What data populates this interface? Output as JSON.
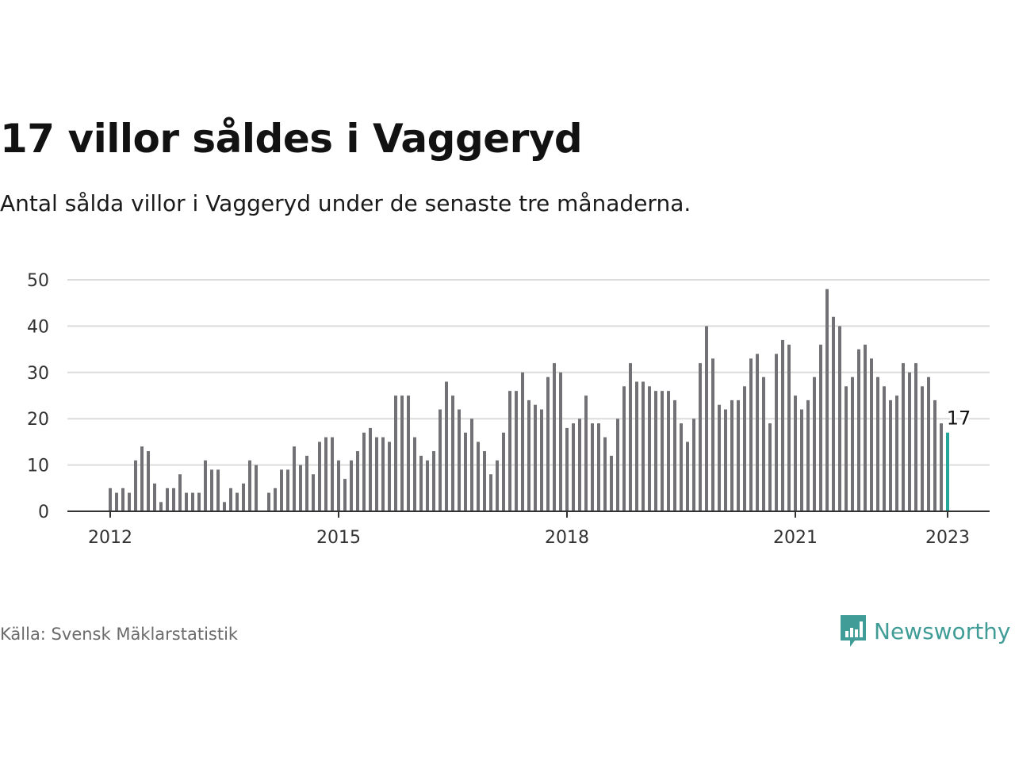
{
  "header": {
    "title": "17 villor såldes i Vaggeryd",
    "subtitle": "Antal sålda villor i Vaggeryd under de senaste tre månaderna."
  },
  "footer": {
    "source": "Källa: Svensk Mäklarstatistik",
    "brand": "Newsworthy",
    "brand_color": "#3f9c96"
  },
  "colors": {
    "bar": "#727276",
    "highlight": "#26a69a",
    "grid": "#dcdcdc",
    "axis": "#333333"
  },
  "chart_data": {
    "type": "bar",
    "x_start": "2012-01",
    "y_ticks": [
      0,
      10,
      20,
      30,
      40,
      50
    ],
    "ylim": [
      0,
      50
    ],
    "x_ticks": [
      "2012",
      "2015",
      "2018",
      "2021",
      "2023"
    ],
    "grid": true,
    "highlight_last": true,
    "last_label": "17",
    "values": [
      5,
      4,
      5,
      4,
      11,
      14,
      13,
      6,
      2,
      5,
      5,
      8,
      4,
      4,
      4,
      11,
      9,
      9,
      2,
      5,
      4,
      6,
      11,
      10,
      0,
      4,
      5,
      9,
      9,
      14,
      10,
      12,
      8,
      15,
      16,
      16,
      11,
      7,
      11,
      13,
      17,
      18,
      16,
      16,
      15,
      25,
      25,
      25,
      16,
      12,
      11,
      13,
      22,
      28,
      25,
      22,
      17,
      20,
      15,
      13,
      8,
      11,
      17,
      26,
      26,
      30,
      24,
      23,
      22,
      29,
      32,
      30,
      18,
      19,
      20,
      25,
      19,
      19,
      16,
      12,
      20,
      27,
      32,
      28,
      28,
      27,
      26,
      26,
      26,
      24,
      19,
      15,
      20,
      32,
      40,
      33,
      23,
      22,
      24,
      24,
      27,
      33,
      34,
      29,
      19,
      34,
      37,
      36,
      25,
      22,
      24,
      29,
      36,
      48,
      42,
      40,
      27,
      29,
      35,
      36,
      33,
      29,
      27,
      24,
      25,
      32,
      30,
      32,
      27,
      29,
      24,
      19,
      17
    ]
  }
}
